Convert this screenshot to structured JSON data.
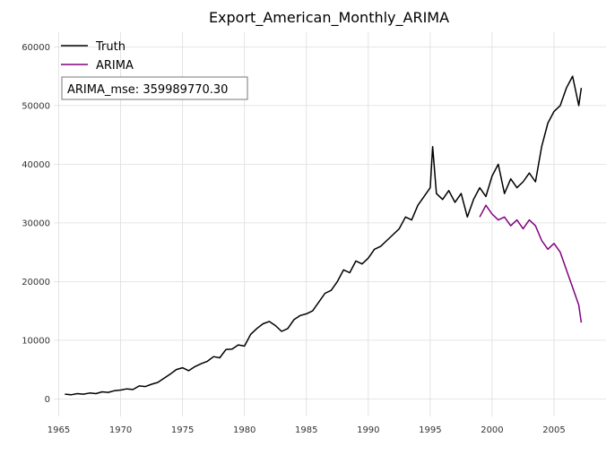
{
  "chart_data": {
    "type": "line",
    "title": "Export_American_Monthly_ARIMA",
    "xlabel": "",
    "ylabel": "",
    "xlim": [
      1964.6,
      2009.2
    ],
    "ylim": [
      -3000,
      62500
    ],
    "xticks": [
      1965,
      1970,
      1975,
      1980,
      1985,
      1990,
      1995,
      2000,
      2005
    ],
    "yticks": [
      0,
      10000,
      20000,
      30000,
      40000,
      50000,
      60000
    ],
    "grid": true,
    "legend_position": "top-left",
    "annotation": "ARIMA_mse: 359989770.30",
    "series": [
      {
        "name": "Truth",
        "color": "#000000",
        "x": [
          1965.5,
          1966.0,
          1966.5,
          1967.0,
          1967.5,
          1968.0,
          1968.5,
          1969.0,
          1969.5,
          1970.0,
          1970.5,
          1971.0,
          1971.5,
          1972.0,
          1972.5,
          1973.0,
          1973.5,
          1974.0,
          1974.5,
          1975.0,
          1975.5,
          1976.0,
          1976.5,
          1977.0,
          1977.5,
          1978.0,
          1978.5,
          1979.0,
          1979.5,
          1980.0,
          1980.5,
          1981.0,
          1981.5,
          1982.0,
          1982.5,
          1983.0,
          1983.5,
          1984.0,
          1984.5,
          1985.0,
          1985.5,
          1986.0,
          1986.5,
          1987.0,
          1987.5,
          1988.0,
          1988.5,
          1989.0,
          1989.5,
          1990.0,
          1990.5,
          1991.0,
          1991.5,
          1992.0,
          1992.5,
          1993.0,
          1993.5,
          1994.0,
          1994.5,
          1995.0,
          1995.2,
          1995.5,
          1996.0,
          1996.5,
          1997.0,
          1997.5,
          1998.0,
          1998.5,
          1999.0,
          1999.5,
          2000.0,
          2000.5,
          2001.0,
          2001.5,
          2002.0,
          2002.5,
          2003.0,
          2003.5,
          2004.0,
          2004.5,
          2005.0,
          2005.5,
          2006.0,
          2006.5,
          2007.0,
          2007.2
        ],
        "values": [
          800,
          700,
          900,
          800,
          1000,
          900,
          1200,
          1100,
          1400,
          1500,
          1700,
          1600,
          2200,
          2100,
          2500,
          2800,
          3500,
          4200,
          5000,
          5300,
          4800,
          5500,
          6000,
          6400,
          7200,
          7000,
          8400,
          8500,
          9200,
          9000,
          11000,
          12000,
          12800,
          13200,
          12500,
          11500,
          12000,
          13500,
          14200,
          14500,
          15000,
          16500,
          18000,
          18500,
          20000,
          22000,
          21500,
          23500,
          23000,
          24000,
          25500,
          26000,
          27000,
          28000,
          29000,
          31000,
          30500,
          33000,
          34500,
          36000,
          43000,
          35000,
          34000,
          35500,
          33500,
          35000,
          31000,
          34000,
          36000,
          34500,
          38000,
          40000,
          35000,
          37500,
          36000,
          37000,
          38500,
          37000,
          43000,
          47000,
          49000,
          50000,
          53000,
          55000,
          50000,
          53000
        ]
      },
      {
        "name": "ARIMA",
        "color": "#800080",
        "x": [
          1999.0,
          1999.5,
          2000.0,
          2000.5,
          2001.0,
          2001.5,
          2002.0,
          2002.5,
          2003.0,
          2003.5,
          2004.0,
          2004.5,
          2005.0,
          2005.5,
          2006.0,
          2006.5,
          2007.0,
          2007.2
        ],
        "values": [
          31000,
          33000,
          31500,
          30500,
          31000,
          29500,
          30500,
          29000,
          30500,
          29500,
          27000,
          25500,
          26500,
          25000,
          22000,
          19000,
          16000,
          13000
        ]
      }
    ]
  }
}
